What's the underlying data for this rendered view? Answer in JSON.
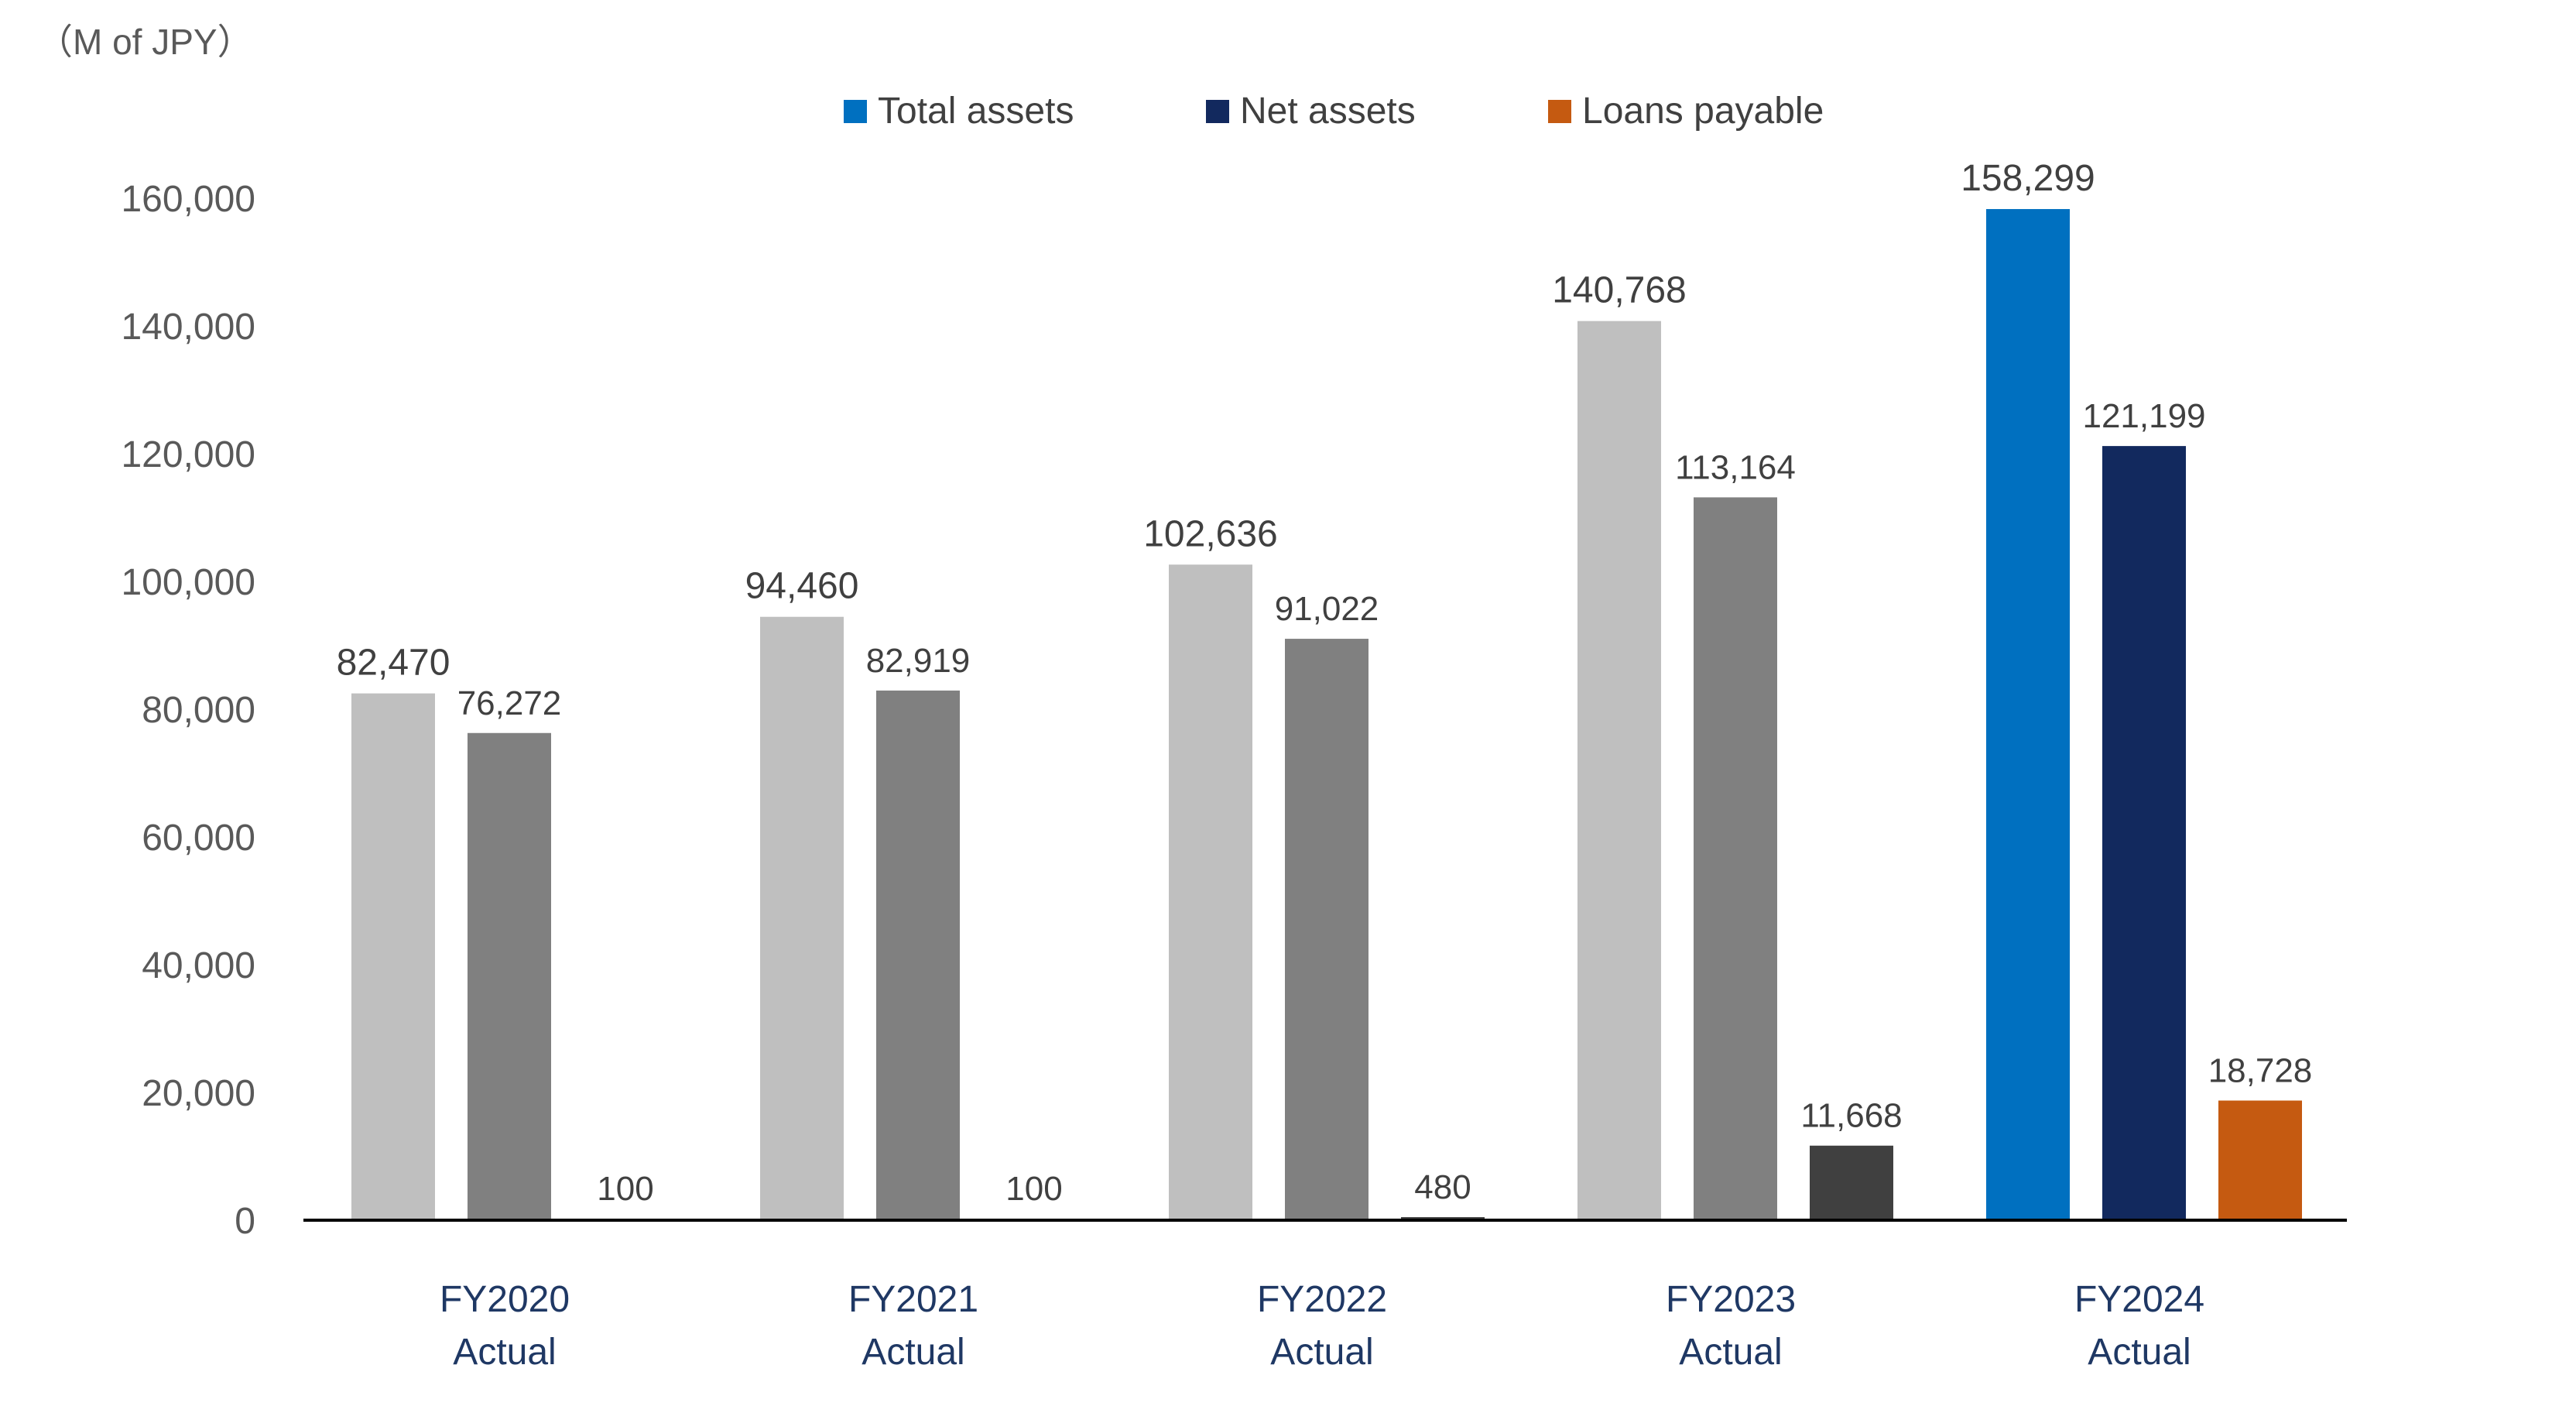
{
  "chart_data": {
    "type": "bar",
    "unit_label": "（M of JPY）",
    "categories": [
      {
        "line1": "FY2020",
        "line2": "Actual"
      },
      {
        "line1": "FY2021",
        "line2": "Actual"
      },
      {
        "line1": "FY2022",
        "line2": "Actual"
      },
      {
        "line1": "FY2023",
        "line2": "Actual"
      },
      {
        "line1": "FY2024",
        "line2": "Actual"
      }
    ],
    "series": [
      {
        "name": "Total assets",
        "values": [
          82470,
          94460,
          102636,
          140768,
          158299
        ],
        "labels": [
          "82,470",
          "94,460",
          "102,636",
          "140,768",
          "158,299"
        ]
      },
      {
        "name": "Net assets",
        "values": [
          76272,
          82919,
          91022,
          113164,
          121199
        ],
        "labels": [
          "76,272",
          "82,919",
          "91,022",
          "113,164",
          "121,199"
        ]
      },
      {
        "name": "Loans payable",
        "values": [
          100,
          100,
          480,
          11668,
          18728
        ],
        "labels": [
          "100",
          "100",
          "480",
          "11,668",
          "18,728"
        ]
      }
    ],
    "bar_colors": [
      [
        "#bfbfbf",
        "#808080",
        "#404040"
      ],
      [
        "#bfbfbf",
        "#808080",
        "#404040"
      ],
      [
        "#bfbfbf",
        "#808080",
        "#404040"
      ],
      [
        "#bfbfbf",
        "#808080",
        "#404040"
      ],
      [
        "#0070c0",
        "#12295e",
        "#c55a11"
      ]
    ],
    "legend": {
      "position": "top-center",
      "colors": [
        "#0070c0",
        "#12295e",
        "#c55a11"
      ]
    },
    "y_ticks": [
      "0",
      "20,000",
      "40,000",
      "60,000",
      "80,000",
      "100,000",
      "120,000",
      "140,000",
      "160,000"
    ],
    "ylim": [
      0,
      160000
    ],
    "grid": false,
    "xlabel": "",
    "ylabel": ""
  }
}
